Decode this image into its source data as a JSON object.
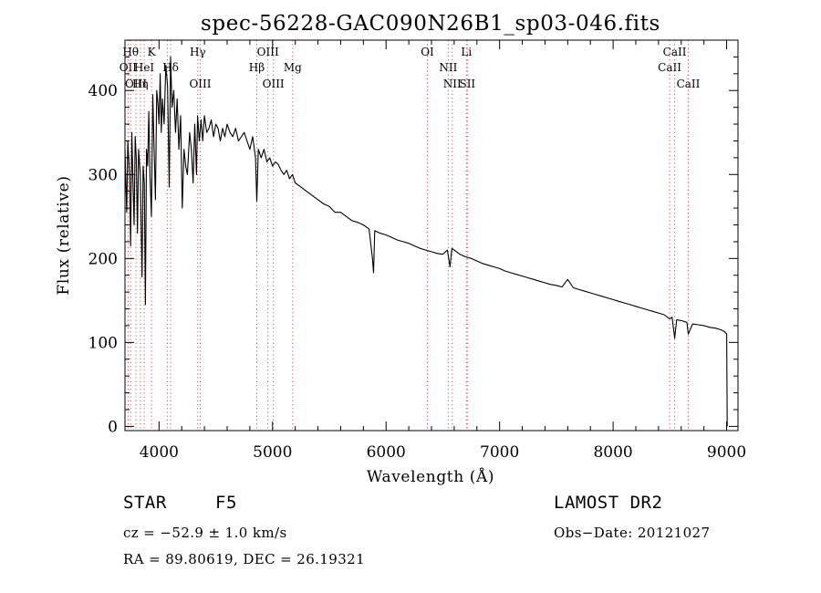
{
  "chart_data": {
    "type": "line",
    "title": "spec-56228-GAC090N26B1_sp03-046.fits",
    "xlabel": "Wavelength (Å)",
    "ylabel": "Flux (relative)",
    "xlim": [
      3700,
      9100
    ],
    "ylim": [
      -5,
      460
    ],
    "xticks": [
      4000,
      5000,
      6000,
      7000,
      8000,
      9000
    ],
    "xtick_labels": [
      "4000",
      "5000",
      "6000",
      "7000",
      "8000",
      "9000"
    ],
    "yticks": [
      0,
      100,
      200,
      300,
      400
    ],
    "ytick_labels": [
      "0",
      "100",
      "200",
      "300",
      "400"
    ],
    "line_color": "#000000",
    "marker_color": "#e05050",
    "series": [
      {
        "x": [
          3700,
          3715,
          3725,
          3740,
          3750,
          3760,
          3770,
          3780,
          3790,
          3800,
          3810,
          3820,
          3835,
          3850,
          3860,
          3870,
          3880,
          3890,
          3900,
          3910,
          3920,
          3933,
          3945,
          3955,
          3968,
          3980,
          3990,
          4000,
          4010,
          4020,
          4030,
          4045,
          4060,
          4075,
          4090,
          4102,
          4115,
          4130,
          4145,
          4160,
          4175,
          4190,
          4205,
          4220,
          4235,
          4250,
          4270,
          4285,
          4300,
          4315,
          4330,
          4340,
          4355,
          4370,
          4385,
          4400,
          4420,
          4440,
          4460,
          4480,
          4500,
          4520,
          4540,
          4560,
          4580,
          4600,
          4625,
          4650,
          4675,
          4700,
          4725,
          4750,
          4775,
          4800,
          4825,
          4850,
          4861,
          4875,
          4900,
          4925,
          4950,
          4975,
          5000,
          5025,
          5050,
          5075,
          5100,
          5125,
          5150,
          5175,
          5200,
          5250,
          5300,
          5350,
          5400,
          5450,
          5500,
          5550,
          5600,
          5650,
          5700,
          5750,
          5800,
          5850,
          5880,
          5890,
          5900,
          5950,
          6000,
          6050,
          6100,
          6150,
          6200,
          6250,
          6300,
          6350,
          6400,
          6450,
          6500,
          6540,
          6563,
          6580,
          6600,
          6650,
          6700,
          6750,
          6800,
          6850,
          6900,
          6950,
          7000,
          7050,
          7100,
          7150,
          7200,
          7250,
          7300,
          7350,
          7400,
          7450,
          7500,
          7550,
          7600,
          7650,
          7700,
          7750,
          7800,
          7850,
          7900,
          7950,
          8000,
          8050,
          8100,
          8150,
          8200,
          8250,
          8300,
          8350,
          8400,
          8450,
          8498,
          8520,
          8542,
          8560,
          8600,
          8650,
          8662,
          8700,
          8750,
          8800,
          8850,
          8900,
          8950,
          8980,
          9000,
          9005
        ],
        "y": [
          330,
          255,
          340,
          300,
          215,
          350,
          295,
          240,
          345,
          320,
          230,
          330,
          300,
          178,
          310,
          290,
          145,
          330,
          310,
          375,
          300,
          250,
          395,
          340,
          270,
          400,
          385,
          360,
          420,
          350,
          390,
          360,
          430,
          405,
          285,
          440,
          380,
          400,
          350,
          390,
          330,
          370,
          260,
          330,
          310,
          300,
          350,
          330,
          290,
          360,
          300,
          370,
          340,
          365,
          340,
          370,
          350,
          355,
          365,
          345,
          360,
          355,
          340,
          355,
          345,
          360,
          350,
          345,
          355,
          340,
          345,
          350,
          340,
          330,
          345,
          320,
          268,
          330,
          320,
          330,
          315,
          320,
          310,
          315,
          312,
          305,
          300,
          305,
          295,
          300,
          290,
          285,
          280,
          275,
          270,
          265,
          262,
          255,
          255,
          250,
          245,
          243,
          240,
          235,
          200,
          183,
          233,
          230,
          228,
          225,
          222,
          220,
          218,
          215,
          212,
          210,
          208,
          206,
          205,
          210,
          190,
          212,
          210,
          205,
          202,
          200,
          197,
          194,
          192,
          190,
          188,
          185,
          183,
          181,
          179,
          177,
          175,
          173,
          171,
          169,
          168,
          166,
          175,
          165,
          163,
          161,
          159,
          157,
          155,
          153,
          151,
          149,
          147,
          145,
          143,
          141,
          139,
          137,
          135,
          133,
          128,
          130,
          105,
          127,
          126,
          124,
          110,
          122,
          121,
          120,
          118,
          117,
          115,
          113,
          110,
          0
        ]
      }
    ],
    "line_markers": [
      {
        "x": 3727,
        "label": "OII",
        "row": 2
      },
      {
        "x": 3750,
        "label": "Hθ",
        "row": 1
      },
      {
        "x": 3797,
        "label": "OIII",
        "row": 3
      },
      {
        "x": 3835,
        "label": "Hη",
        "row": 3
      },
      {
        "x": 3869,
        "label": "HeI",
        "row": 2
      },
      {
        "x": 3934,
        "label": "K",
        "row": 1
      },
      {
        "x": 4074,
        "label": "",
        "row": 3
      },
      {
        "x": 4102,
        "label": "Hδ",
        "row": 2
      },
      {
        "x": 4341,
        "label": "Hγ",
        "row": 1
      },
      {
        "x": 4363,
        "label": "OIII",
        "row": 3
      },
      {
        "x": 4861,
        "label": "Hβ",
        "row": 2
      },
      {
        "x": 4959,
        "label": "OIII",
        "row": 1
      },
      {
        "x": 5007,
        "label": "OIII",
        "row": 3
      },
      {
        "x": 5177,
        "label": "Mg",
        "row": 2
      },
      {
        "x": 6364,
        "label": "OI",
        "row": 1
      },
      {
        "x": 6548,
        "label": "NII",
        "row": 2
      },
      {
        "x": 6583,
        "label": "NII",
        "row": 3
      },
      {
        "x": 6708,
        "label": "Li",
        "row": 1
      },
      {
        "x": 6716,
        "label": "SII",
        "row": 3
      },
      {
        "x": 8498,
        "label": "CaII",
        "row": 2
      },
      {
        "x": 8542,
        "label": "CaII",
        "row": 1
      },
      {
        "x": 8662,
        "label": "CaII",
        "row": 3
      }
    ]
  },
  "info": {
    "class_label": "STAR",
    "subclass_label": "F5",
    "survey": "LAMOST DR2",
    "velocity": "cz = −52.9 ± 1.0 km/s",
    "obs_date": "Obs−Date: 20121027",
    "coords": "RA =  89.80619, DEC =  26.19321"
  }
}
